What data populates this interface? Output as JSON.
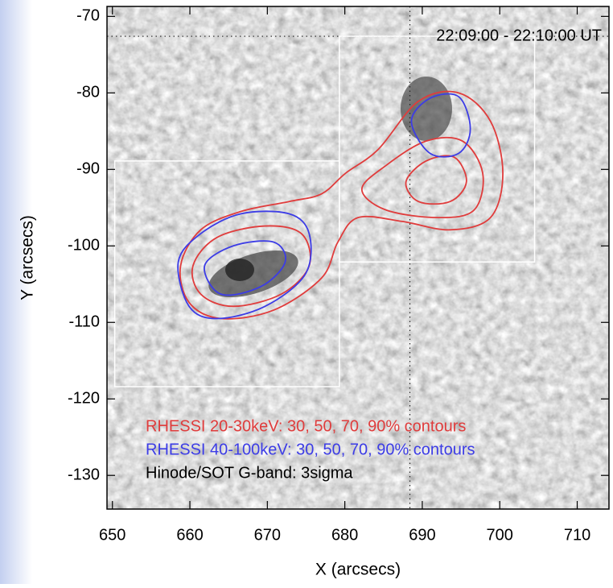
{
  "chart_data": {
    "type": "contour",
    "xlabel": "X (arcsecs)",
    "ylabel": "Y (arcsecs)",
    "xlim": [
      649.3,
      714.1
    ],
    "ylim": [
      -134.4,
      -68.7
    ],
    "xticks": [
      650,
      660,
      670,
      680,
      690,
      700,
      710
    ],
    "yticks": [
      -70,
      -80,
      -90,
      -100,
      -110,
      -120,
      -130
    ],
    "time_label": "22:09:00 - 22:10:00 UT",
    "annotations": [
      {
        "text": "RHESSI 20-30keV: 30, 50, 70, 90% contours",
        "color": "#e03c3c"
      },
      {
        "text": "RHESSI 40-100keV: 30, 50, 70, 90% contours",
        "color": "#3c3ce6"
      },
      {
        "text": "Hinode/SOT G-band: 3sigma",
        "color": "#000000"
      }
    ],
    "boxes": [
      {
        "x": [
          650.3,
          679.3
        ],
        "y": [
          -118.4,
          -88.9
        ]
      },
      {
        "x": [
          679.3,
          704.5
        ],
        "y": [
          -102.1,
          -72.6
        ]
      }
    ],
    "reference_lines": {
      "y": -72.6,
      "x": 688.4
    },
    "contours": [
      {
        "color": "#e03c3c",
        "x": [
          658.8,
          661.4,
          666.6,
          672.8,
          677.0,
          680.1,
          684.3,
          689.5,
          694.7,
          698.8,
          700.4,
          698.8,
          693.6,
          687.4,
          681.7,
          679.1,
          677.0,
          670.8,
          664.0,
          659.9
        ],
        "y": [
          -102.6,
          -97.9,
          -95.5,
          -94.2,
          -93.2,
          -90.5,
          -87.4,
          -81.1,
          -80.0,
          -83.7,
          -90.5,
          -96.3,
          -97.9,
          -96.8,
          -96.3,
          -99.5,
          -104.2,
          -108.4,
          -109.5,
          -107.4
        ]
      },
      {
        "color": "#e03c3c",
        "x": [
          660.4,
          663.5,
          669.7,
          674.4,
          675.4,
          671.8,
          665.6,
          661.4
        ],
        "y": [
          -102.6,
          -98.9,
          -97.4,
          -98.4,
          -102.6,
          -106.3,
          -107.9,
          -106.3
        ]
      },
      {
        "color": "#e03c3c",
        "x": [
          682.2,
          685.3,
          690.5,
          695.2,
          697.8,
          696.7,
          692.1,
          685.3
        ],
        "y": [
          -92.6,
          -89.5,
          -86.3,
          -86.3,
          -90.5,
          -95.3,
          -96.3,
          -95.3
        ]
      },
      {
        "color": "#e03c3c",
        "x": [
          687.9,
          690.5,
          694.1,
          695.7,
          693.6,
          689.5
        ],
        "y": [
          -91.6,
          -88.9,
          -88.4,
          -91.6,
          -94.2,
          -94.2
        ]
      },
      {
        "color": "#3c3ce6",
        "x": [
          658.5,
          661.4,
          666.6,
          672.8,
          675.4,
          674.9,
          669.7,
          663.5,
          659.9
        ],
        "y": [
          -102.1,
          -98.4,
          -95.8,
          -95.8,
          -98.4,
          -103.7,
          -107.9,
          -109.5,
          -107.9
        ]
      },
      {
        "color": "#3c3ce6",
        "x": [
          661.9,
          665.6,
          670.8,
          672.3,
          669.2,
          664.0
        ],
        "y": [
          -102.6,
          -100.0,
          -99.5,
          -102.1,
          -105.3,
          -106.3
        ]
      },
      {
        "color": "#3c3ce6",
        "x": [
          688.6,
          691.0,
          694.7,
          696.2,
          694.7,
          691.0
        ],
        "y": [
          -83.7,
          -80.7,
          -80.5,
          -84.7,
          -87.9,
          -87.9
        ]
      }
    ]
  }
}
